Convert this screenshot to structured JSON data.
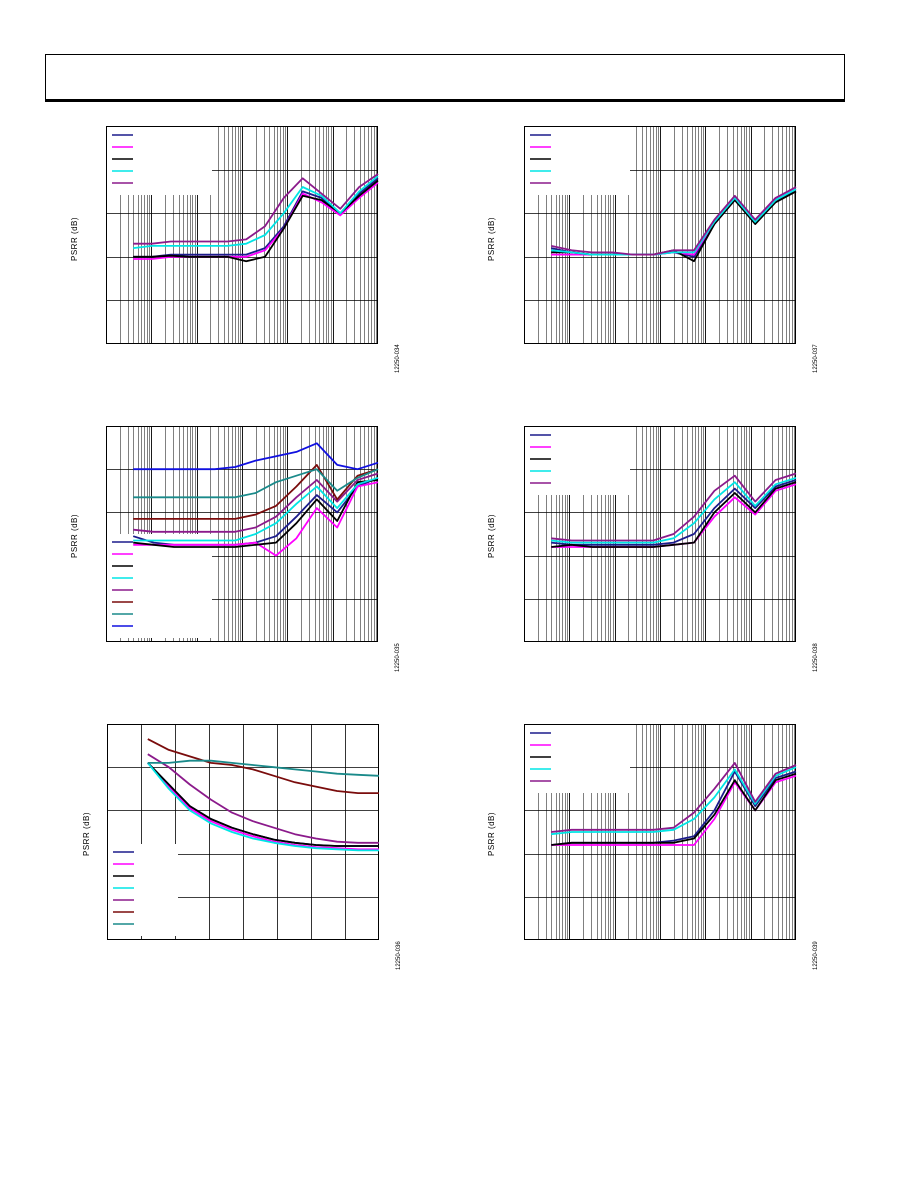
{
  "header": {
    "title": ""
  },
  "colors": {
    "navy": "#1c1c8c",
    "magenta": "#ff00ff",
    "black": "#000000",
    "cyan": "#00e5e5",
    "purple": "#8b1a8b",
    "maroon": "#7a0c0c",
    "teal": "#1a8a8a",
    "blue": "#1010e0"
  },
  "chart_data": [
    {
      "id": "fig1",
      "type": "line",
      "xscale": "log",
      "ylabel": "PSRR (dB)",
      "figure_id": "12250-034",
      "legend_colors": [
        "navy",
        "magenta",
        "black",
        "cyan",
        "purple"
      ],
      "legend_box": true,
      "legend_pos": "top-left",
      "series": [
        {
          "color": "navy",
          "y": [
            0.4,
            0.4,
            0.41,
            0.41,
            0.41,
            0.41,
            0.41,
            0.44,
            0.54,
            0.7,
            0.67,
            0.6,
            0.69,
            0.76
          ]
        },
        {
          "color": "magenta",
          "y": [
            0.39,
            0.39,
            0.4,
            0.4,
            0.4,
            0.4,
            0.4,
            0.43,
            0.53,
            0.69,
            0.65,
            0.59,
            0.67,
            0.74
          ]
        },
        {
          "color": "black",
          "y": [
            0.4,
            0.4,
            0.405,
            0.4,
            0.4,
            0.4,
            0.38,
            0.4,
            0.53,
            0.68,
            0.66,
            0.6,
            0.68,
            0.75
          ]
        },
        {
          "color": "cyan",
          "y": [
            0.44,
            0.45,
            0.45,
            0.45,
            0.45,
            0.45,
            0.46,
            0.5,
            0.6,
            0.72,
            0.68,
            0.6,
            0.7,
            0.77
          ]
        },
        {
          "color": "purple",
          "y": [
            0.46,
            0.46,
            0.47,
            0.47,
            0.47,
            0.47,
            0.48,
            0.54,
            0.67,
            0.76,
            0.69,
            0.62,
            0.72,
            0.78
          ]
        }
      ]
    },
    {
      "id": "fig2",
      "type": "line",
      "xscale": "log",
      "ylabel": "PSRR (dB)",
      "figure_id": "12250-037",
      "legend_colors": [
        "navy",
        "magenta",
        "black",
        "cyan",
        "purple"
      ],
      "legend_box": true,
      "legend_pos": "top-left",
      "series": [
        {
          "color": "navy",
          "y": [
            0.44,
            0.42,
            0.41,
            0.41,
            0.41,
            0.41,
            0.42,
            0.4,
            0.55,
            0.66,
            0.56,
            0.66,
            0.7
          ]
        },
        {
          "color": "magenta",
          "y": [
            0.41,
            0.41,
            0.41,
            0.41,
            0.41,
            0.41,
            0.42,
            0.41,
            0.56,
            0.67,
            0.57,
            0.67,
            0.71
          ]
        },
        {
          "color": "black",
          "y": [
            0.42,
            0.42,
            0.41,
            0.41,
            0.41,
            0.41,
            0.43,
            0.38,
            0.55,
            0.66,
            0.55,
            0.65,
            0.7
          ]
        },
        {
          "color": "cyan",
          "y": [
            0.43,
            0.42,
            0.41,
            0.41,
            0.41,
            0.41,
            0.42,
            0.42,
            0.56,
            0.67,
            0.56,
            0.66,
            0.71
          ]
        },
        {
          "color": "purple",
          "y": [
            0.45,
            0.43,
            0.42,
            0.42,
            0.41,
            0.41,
            0.43,
            0.43,
            0.57,
            0.68,
            0.57,
            0.67,
            0.72
          ]
        }
      ]
    },
    {
      "id": "fig3",
      "type": "line",
      "xscale": "log",
      "ylabel": "PSRR (dB)",
      "figure_id": "12250-035",
      "legend_colors": [
        "navy",
        "magenta",
        "black",
        "cyan",
        "purple",
        "maroon",
        "teal",
        "blue"
      ],
      "legend_box": true,
      "legend_pos": "bottom-left",
      "series": [
        {
          "color": "navy",
          "y": [
            0.49,
            0.46,
            0.45,
            0.45,
            0.45,
            0.45,
            0.46,
            0.49,
            0.58,
            0.68,
            0.6,
            0.72,
            0.76
          ]
        },
        {
          "color": "magenta",
          "y": [
            0.45,
            0.45,
            0.45,
            0.45,
            0.45,
            0.45,
            0.46,
            0.4,
            0.48,
            0.62,
            0.53,
            0.72,
            0.74
          ]
        },
        {
          "color": "black",
          "y": [
            0.46,
            0.45,
            0.44,
            0.44,
            0.44,
            0.44,
            0.45,
            0.46,
            0.55,
            0.66,
            0.56,
            0.74,
            0.75
          ]
        },
        {
          "color": "cyan",
          "y": [
            0.47,
            0.47,
            0.47,
            0.47,
            0.47,
            0.47,
            0.5,
            0.55,
            0.64,
            0.72,
            0.62,
            0.73,
            0.76
          ]
        },
        {
          "color": "purple",
          "y": [
            0.52,
            0.51,
            0.51,
            0.51,
            0.51,
            0.51,
            0.53,
            0.58,
            0.67,
            0.75,
            0.65,
            0.75,
            0.78
          ]
        },
        {
          "color": "maroon",
          "y": [
            0.57,
            0.57,
            0.57,
            0.57,
            0.57,
            0.57,
            0.59,
            0.63,
            0.72,
            0.82,
            0.66,
            0.77,
            0.8
          ]
        },
        {
          "color": "teal",
          "y": [
            0.67,
            0.67,
            0.67,
            0.67,
            0.67,
            0.67,
            0.69,
            0.74,
            0.77,
            0.8,
            0.7,
            0.76,
            0.8
          ]
        },
        {
          "color": "blue",
          "y": [
            0.8,
            0.8,
            0.8,
            0.8,
            0.8,
            0.81,
            0.84,
            0.86,
            0.88,
            0.92,
            0.82,
            0.8,
            0.83
          ]
        }
      ]
    },
    {
      "id": "fig4",
      "type": "line",
      "xscale": "log",
      "ylabel": "PSRR (dB)",
      "figure_id": "12250-038",
      "legend_colors": [
        "navy",
        "magenta",
        "black",
        "cyan",
        "purple"
      ],
      "legend_box": true,
      "legend_pos": "top-left",
      "series": [
        {
          "color": "navy",
          "y": [
            0.46,
            0.45,
            0.45,
            0.45,
            0.45,
            0.45,
            0.46,
            0.5,
            0.62,
            0.71,
            0.62,
            0.72,
            0.75
          ]
        },
        {
          "color": "magenta",
          "y": [
            0.44,
            0.44,
            0.44,
            0.44,
            0.44,
            0.44,
            0.45,
            0.46,
            0.58,
            0.67,
            0.59,
            0.7,
            0.73
          ]
        },
        {
          "color": "black",
          "y": [
            0.44,
            0.45,
            0.44,
            0.44,
            0.44,
            0.44,
            0.45,
            0.46,
            0.6,
            0.69,
            0.6,
            0.71,
            0.74
          ]
        },
        {
          "color": "cyan",
          "y": [
            0.47,
            0.46,
            0.46,
            0.46,
            0.46,
            0.46,
            0.48,
            0.55,
            0.66,
            0.74,
            0.63,
            0.73,
            0.76
          ]
        },
        {
          "color": "purple",
          "y": [
            0.48,
            0.47,
            0.47,
            0.47,
            0.47,
            0.47,
            0.5,
            0.58,
            0.7,
            0.77,
            0.65,
            0.75,
            0.78
          ]
        }
      ]
    },
    {
      "id": "fig5",
      "type": "line",
      "xscale": "linear",
      "ylabel": "PSRR (dB)",
      "figure_id": "12250-036",
      "legend_colors": [
        "navy",
        "magenta",
        "black",
        "cyan",
        "purple",
        "maroon",
        "teal"
      ],
      "legend_box": true,
      "legend_pos": "bottom-left",
      "series": [
        {
          "color": "navy",
          "y": [
            0.82,
            0.72,
            0.62,
            0.56,
            0.52,
            0.49,
            0.465,
            0.45,
            0.44,
            0.435,
            0.435,
            0.435
          ]
        },
        {
          "color": "magenta",
          "y": [
            0.82,
            0.71,
            0.61,
            0.55,
            0.51,
            0.48,
            0.455,
            0.44,
            0.43,
            0.425,
            0.42,
            0.42
          ]
        },
        {
          "color": "black",
          "y": [
            0.82,
            0.72,
            0.62,
            0.56,
            0.52,
            0.49,
            0.465,
            0.45,
            0.44,
            0.435,
            0.435,
            0.435
          ]
        },
        {
          "color": "cyan",
          "y": [
            0.82,
            0.7,
            0.6,
            0.54,
            0.5,
            0.47,
            0.45,
            0.435,
            0.425,
            0.42,
            0.415,
            0.415
          ]
        },
        {
          "color": "purple",
          "y": [
            0.86,
            0.8,
            0.72,
            0.65,
            0.59,
            0.55,
            0.52,
            0.49,
            0.47,
            0.455,
            0.45,
            0.45
          ]
        },
        {
          "color": "maroon",
          "y": [
            0.93,
            0.88,
            0.85,
            0.82,
            0.81,
            0.79,
            0.76,
            0.73,
            0.71,
            0.69,
            0.68,
            0.68
          ]
        },
        {
          "color": "teal",
          "y": [
            0.82,
            0.82,
            0.83,
            0.83,
            0.82,
            0.81,
            0.8,
            0.79,
            0.78,
            0.77,
            0.765,
            0.76
          ]
        }
      ]
    },
    {
      "id": "fig6",
      "type": "line",
      "xscale": "log",
      "ylabel": "PSRR (dB)",
      "figure_id": "12250-039",
      "legend_colors": [
        "navy",
        "magenta",
        "black",
        "cyan",
        "purple"
      ],
      "legend_box": true,
      "legend_pos": "top-left",
      "series": [
        {
          "color": "navy",
          "y": [
            0.44,
            0.45,
            0.45,
            0.45,
            0.45,
            0.45,
            0.46,
            0.48,
            0.6,
            0.78,
            0.62,
            0.75,
            0.78
          ]
        },
        {
          "color": "magenta",
          "y": [
            0.44,
            0.44,
            0.44,
            0.44,
            0.44,
            0.44,
            0.44,
            0.44,
            0.56,
            0.73,
            0.6,
            0.73,
            0.76
          ]
        },
        {
          "color": "black",
          "y": [
            0.44,
            0.45,
            0.45,
            0.45,
            0.45,
            0.45,
            0.45,
            0.47,
            0.58,
            0.74,
            0.6,
            0.74,
            0.77
          ]
        },
        {
          "color": "cyan",
          "y": [
            0.49,
            0.5,
            0.5,
            0.5,
            0.5,
            0.5,
            0.51,
            0.56,
            0.66,
            0.79,
            0.63,
            0.76,
            0.8
          ]
        },
        {
          "color": "purple",
          "y": [
            0.5,
            0.51,
            0.51,
            0.51,
            0.51,
            0.51,
            0.52,
            0.59,
            0.7,
            0.82,
            0.64,
            0.77,
            0.81
          ]
        }
      ]
    }
  ]
}
